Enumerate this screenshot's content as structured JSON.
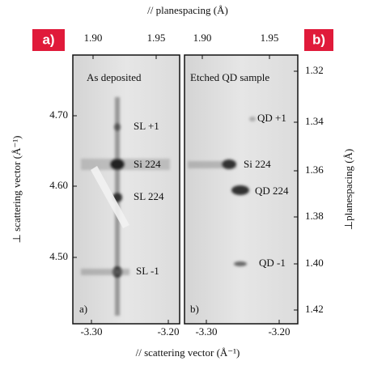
{
  "top_axis": {
    "title": "// planespacing (Å)",
    "ticks_a": [
      "1.90",
      "1.95"
    ],
    "ticks_b": [
      "1.90",
      "1.95"
    ]
  },
  "left_axis": {
    "title": "⊥ scattering vector (Å⁻¹)",
    "ticks": [
      "4.70",
      "4.60",
      "4.50"
    ]
  },
  "right_axis": {
    "title": "⊥planespacing (Å)",
    "ticks": [
      "1.32",
      "1.34",
      "1.36",
      "1.38",
      "1.40",
      "1.42"
    ]
  },
  "bottom_axis": {
    "title": "// scattering vector (Å⁻¹)",
    "ticks_a": [
      "-3.30",
      "-3.20"
    ],
    "ticks_b": [
      "-3.30",
      "-3.20"
    ]
  },
  "panel_a": {
    "badge": "a)",
    "corner": "a)",
    "heading": "As deposited",
    "peaks": [
      "SL +1",
      "Si 224",
      "SL 224",
      "SL -1"
    ]
  },
  "panel_b": {
    "badge": "b)",
    "corner": "b)",
    "heading": "Etched QD sample",
    "peaks": [
      "QD +1",
      "Si 224",
      "QD 224",
      "QD -1"
    ]
  }
}
